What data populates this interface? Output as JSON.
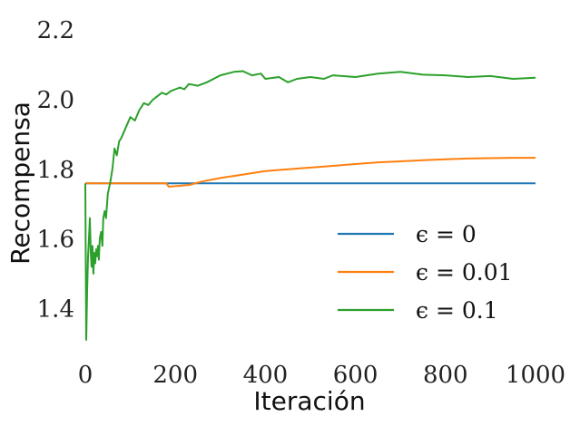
{
  "chart_data": {
    "type": "line",
    "xlabel": "Iteración",
    "ylabel": "Recompensa",
    "xlim": [
      0,
      1000
    ],
    "ylim": [
      1.25,
      2.25
    ],
    "xticks": [
      {
        "value": 0,
        "label": "0"
      },
      {
        "value": 200,
        "label": "200"
      },
      {
        "value": 400,
        "label": "400"
      },
      {
        "value": 600,
        "label": "600"
      },
      {
        "value": 800,
        "label": "800"
      },
      {
        "value": 1000,
        "label": "1000"
      }
    ],
    "yticks": [
      {
        "value": 1.4,
        "label": "1.4"
      },
      {
        "value": 1.6,
        "label": "1.6"
      },
      {
        "value": 1.8,
        "label": "1.8"
      },
      {
        "value": 2.0,
        "label": "2.0"
      },
      {
        "value": 2.2,
        "label": "2.2"
      }
    ],
    "grid": false,
    "legend_position": "bottom-right",
    "series": [
      {
        "name": "ϵ = 0",
        "color": "#1f77b4",
        "x": [
          0,
          2,
          1000
        ],
        "y": [
          1.76,
          1.76,
          1.76
        ]
      },
      {
        "name": "ϵ = 0.01",
        "color": "#ff7f0e",
        "x": [
          0,
          180,
          185,
          230,
          260,
          300,
          350,
          400,
          450,
          500,
          550,
          600,
          650,
          700,
          750,
          800,
          850,
          900,
          950,
          1000
        ],
        "y": [
          1.76,
          1.76,
          1.75,
          1.755,
          1.765,
          1.775,
          1.785,
          1.795,
          1.8,
          1.805,
          1.81,
          1.815,
          1.82,
          1.823,
          1.826,
          1.829,
          1.831,
          1.832,
          1.833,
          1.833
        ]
      },
      {
        "name": "ϵ = 0.1",
        "color": "#2ca02c",
        "x": [
          0,
          2,
          4,
          6,
          8,
          10,
          12,
          14,
          16,
          18,
          20,
          22,
          24,
          26,
          28,
          30,
          32,
          35,
          38,
          40,
          43,
          46,
          50,
          55,
          60,
          65,
          70,
          75,
          80,
          90,
          100,
          110,
          120,
          130,
          140,
          150,
          160,
          170,
          180,
          190,
          200,
          210,
          220,
          230,
          250,
          270,
          300,
          330,
          350,
          370,
          390,
          400,
          430,
          450,
          470,
          500,
          530,
          550,
          600,
          650,
          700,
          750,
          800,
          850,
          900,
          950,
          1000
        ],
        "y": [
          1.76,
          1.31,
          1.45,
          1.55,
          1.6,
          1.66,
          1.56,
          1.52,
          1.58,
          1.5,
          1.56,
          1.53,
          1.57,
          1.55,
          1.58,
          1.54,
          1.6,
          1.62,
          1.58,
          1.66,
          1.68,
          1.66,
          1.73,
          1.76,
          1.8,
          1.86,
          1.84,
          1.88,
          1.89,
          1.92,
          1.95,
          1.94,
          1.97,
          1.99,
          1.985,
          2.0,
          2.01,
          2.02,
          2.015,
          2.025,
          2.03,
          2.035,
          2.03,
          2.045,
          2.04,
          2.05,
          2.07,
          2.08,
          2.082,
          2.07,
          2.075,
          2.06,
          2.065,
          2.05,
          2.06,
          2.065,
          2.06,
          2.07,
          2.065,
          2.075,
          2.08,
          2.072,
          2.07,
          2.065,
          2.068,
          2.06,
          2.063
        ]
      }
    ]
  }
}
